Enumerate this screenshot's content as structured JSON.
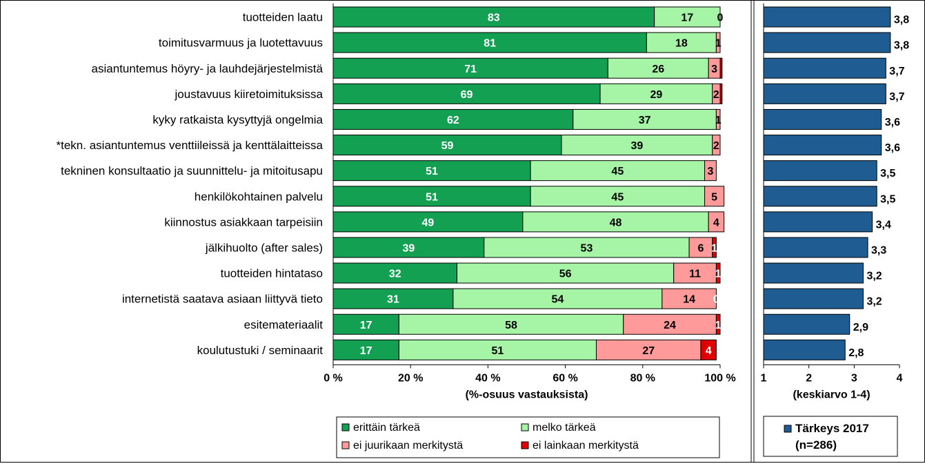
{
  "chart_data": [
    {
      "type": "bar",
      "orientation": "horizontal",
      "stacked": "percent",
      "categories": [
        "tuotteiden laatu",
        "toimitusvarmuus ja luotettavuus",
        "asiantuntemus höyry- ja lauhdejärjestelmistä",
        "joustavuus kiiretoimituksissa",
        "kyky ratkaista kysyttyjä ongelmia",
        "*tekn. asiantuntemus venttiileissä ja kenttälaitteissa",
        "tekninen konsultaatio ja suunnittelu- ja mitoitusapu",
        "henkilökohtainen palvelu",
        "kiinnostus asiakkaan tarpeisiin",
        "jälkihuolto (after sales)",
        "tuotteiden hintataso",
        "internetistä saatava asiaan liittyvä tieto",
        "esitemateriaalit",
        "koulutustuki / seminaarit"
      ],
      "series": [
        {
          "name": "erittäin tärkeä",
          "color": "#14A052",
          "values": [
            83,
            81,
            71,
            69,
            62,
            59,
            51,
            51,
            49,
            39,
            32,
            31,
            17,
            17
          ],
          "labels": [
            "83",
            "81",
            "71",
            "69",
            "62",
            "59",
            "51",
            "51",
            "49",
            "39",
            "32",
            "31",
            "17",
            "17"
          ]
        },
        {
          "name": "melko tärkeä",
          "color": "#A6F5A6",
          "values": [
            17,
            18,
            26,
            29,
            37,
            39,
            45,
            45,
            48,
            53,
            56,
            54,
            58,
            51
          ],
          "labels": [
            "17",
            "18",
            "26",
            "29",
            "37",
            "39",
            "45",
            "45",
            "48",
            "53",
            "56",
            "54",
            "58",
            "51"
          ]
        },
        {
          "name": "ei juurikaan merkitystä",
          "color": "#FF9A9A",
          "values": [
            0,
            1,
            3,
            2,
            1,
            2,
            3,
            5,
            4,
            6,
            11,
            14,
            24,
            27
          ],
          "labels": [
            "0",
            "1",
            "3",
            "2",
            "1",
            "2",
            "3",
            "5",
            "4",
            "6",
            "11",
            "14",
            "24",
            "27"
          ]
        },
        {
          "name": "ei lainkaan merkitystä",
          "color": "#E00000",
          "values": [
            0,
            0,
            0.5,
            0.5,
            0,
            0,
            0,
            0,
            0,
            1,
            1,
            0,
            1,
            4
          ],
          "labels": [
            "",
            "",
            "",
            "",
            "",
            "",
            "",
            "",
            "",
            "1",
            "1",
            "0",
            "1",
            "4"
          ]
        }
      ],
      "xlabel": "(%-osuus vastauksista)",
      "xticks": [
        "0 %",
        "20 %",
        "40 %",
        "60 %",
        "80 %",
        "100 %"
      ],
      "xlim": [
        0,
        100
      ],
      "grid": false,
      "legend_position": "bottom"
    },
    {
      "type": "bar",
      "orientation": "horizontal",
      "series": [
        {
          "name": "Tärkeys 2017 (n=286)",
          "color": "#1F5C91",
          "values": [
            3.8,
            3.8,
            3.7,
            3.7,
            3.6,
            3.6,
            3.5,
            3.5,
            3.4,
            3.3,
            3.2,
            3.2,
            2.9,
            2.8
          ],
          "labels": [
            "3,8",
            "3,8",
            "3,7",
            "3,7",
            "3,6",
            "3,6",
            "3,5",
            "3,5",
            "3,4",
            "3,3",
            "3,2",
            "3,2",
            "2,9",
            "2,8"
          ]
        }
      ],
      "xlabel": "(keskiarvo 1-4)",
      "xticks": [
        "1",
        "2",
        "3",
        "4"
      ],
      "xlim": [
        1,
        4
      ],
      "grid": false,
      "legend_position": "bottom",
      "legend_lines": [
        "Tärkeys 2017",
        "(n=286)"
      ]
    }
  ]
}
